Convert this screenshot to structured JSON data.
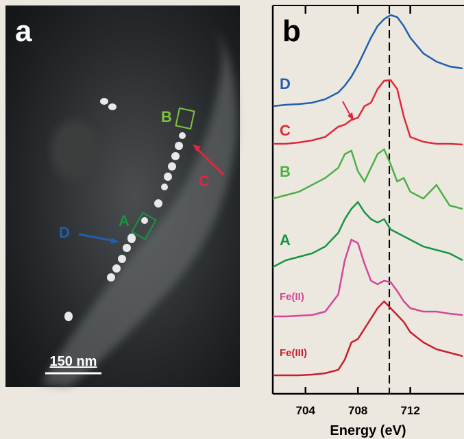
{
  "panel_a": {
    "letter": "a",
    "labels": [
      "B",
      "C",
      "A",
      "D"
    ],
    "scale_bar": "150 nm"
  },
  "chart_data": {
    "type": "line",
    "letter": "b",
    "x_label": "Energy (eV)",
    "xlim": [
      701.5,
      716.1
    ],
    "xticks": [
      704,
      708,
      712
    ],
    "ylim": [
      0,
      567
    ],
    "dashed_x": 710.4,
    "x": [
      701.5,
      702.5,
      703.5,
      704.5,
      705.5,
      706.5,
      707,
      707.5,
      708,
      708.5,
      709,
      709.5,
      710,
      710.5,
      711,
      711.5,
      712,
      713,
      714,
      715,
      716
    ],
    "series": [
      {
        "name": "D",
        "color": "#1f5fae",
        "values": [
          420,
          422,
          423,
          425,
          430,
          440,
          450,
          463,
          480,
          500,
          520,
          537,
          547,
          553,
          550,
          537,
          520,
          497,
          485,
          478,
          475
        ]
      },
      {
        "name": "C",
        "color": "#e0283a",
        "values": [
          365,
          365,
          367,
          370,
          375,
          390,
          393,
          400,
          403,
          420,
          425,
          445,
          457,
          458,
          445,
          405,
          375,
          368,
          365,
          365,
          364
        ]
      },
      {
        "name": "B",
        "color": "#4bb043",
        "values": [
          285,
          290,
          295,
          305,
          315,
          330,
          350,
          355,
          325,
          310,
          330,
          350,
          357,
          335,
          310,
          315,
          295,
          285,
          305,
          275,
          270
        ]
      },
      {
        "name": "A",
        "color": "#169443",
        "values": [
          185,
          195,
          200,
          205,
          215,
          235,
          255,
          270,
          280,
          265,
          255,
          250,
          255,
          240,
          235,
          230,
          225,
          215,
          210,
          205,
          195
        ]
      },
      {
        "name": "Fe(II)",
        "color": "#d6449a",
        "values": [
          113,
          113,
          114,
          115,
          120,
          145,
          195,
          225,
          220,
          190,
          165,
          160,
          165,
          163,
          150,
          135,
          125,
          120,
          120,
          117,
          115
        ]
      },
      {
        "name": "Fe(III)",
        "color": "#c81e2c",
        "values": [
          27,
          27,
          27,
          28,
          30,
          35,
          50,
          75,
          80,
          95,
          110,
          125,
          135,
          125,
          115,
          105,
          90,
          75,
          65,
          60,
          55
        ]
      }
    ]
  }
}
